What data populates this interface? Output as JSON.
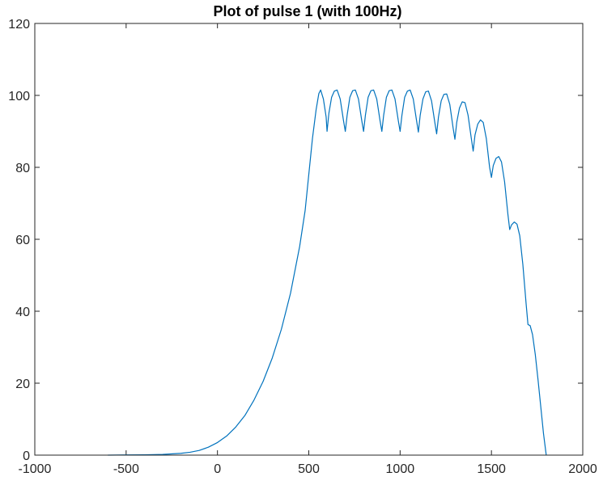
{
  "chart_data": {
    "type": "line",
    "title": "Plot of pulse 1 (with 100Hz)",
    "xlabel": "",
    "ylabel": "",
    "xlim": [
      -1000,
      2000
    ],
    "ylim": [
      0,
      120
    ],
    "xticks": [
      -1000,
      -500,
      0,
      500,
      1000,
      1500,
      2000
    ],
    "yticks": [
      0,
      20,
      40,
      60,
      80,
      100,
      120
    ],
    "xtick_labels": [
      "-1000",
      "-500",
      "0",
      "500",
      "1000",
      "1500",
      "2000"
    ],
    "ytick_labels": [
      "0",
      "20",
      "40",
      "60",
      "80",
      "100",
      "120"
    ],
    "grid": false,
    "series": [
      {
        "color": "#0072BD",
        "points": [
          [
            -600,
            0
          ],
          [
            -500,
            0.05
          ],
          [
            -400,
            0.1
          ],
          [
            -300,
            0.2
          ],
          [
            -200,
            0.5
          ],
          [
            -150,
            0.8
          ],
          [
            -100,
            1.3
          ],
          [
            -50,
            2.2
          ],
          [
            0,
            3.5
          ],
          [
            50,
            5.3
          ],
          [
            100,
            7.8
          ],
          [
            150,
            11.0
          ],
          [
            200,
            15.3
          ],
          [
            250,
            20.5
          ],
          [
            300,
            27.0
          ],
          [
            350,
            35.0
          ],
          [
            400,
            45.0
          ],
          [
            450,
            58.0
          ],
          [
            480,
            68.0
          ],
          [
            500,
            78.0
          ],
          [
            520,
            88.0
          ],
          [
            540,
            96.0
          ],
          [
            555,
            100.5
          ],
          [
            565,
            101.5
          ],
          [
            580,
            99.0
          ],
          [
            595,
            94.0
          ],
          [
            600,
            90.0
          ],
          [
            610,
            95.0
          ],
          [
            625,
            99.5
          ],
          [
            640,
            101.2
          ],
          [
            655,
            101.5
          ],
          [
            672,
            99.0
          ],
          [
            690,
            93.0
          ],
          [
            700,
            90.0
          ],
          [
            710,
            94.5
          ],
          [
            725,
            99.5
          ],
          [
            740,
            101.3
          ],
          [
            755,
            101.5
          ],
          [
            772,
            99.0
          ],
          [
            790,
            93.0
          ],
          [
            800,
            90.0
          ],
          [
            810,
            94.5
          ],
          [
            825,
            99.5
          ],
          [
            840,
            101.3
          ],
          [
            855,
            101.5
          ],
          [
            872,
            99.0
          ],
          [
            890,
            93.0
          ],
          [
            900,
            90.0
          ],
          [
            910,
            94.5
          ],
          [
            925,
            99.5
          ],
          [
            940,
            101.3
          ],
          [
            955,
            101.5
          ],
          [
            972,
            99.0
          ],
          [
            990,
            93.0
          ],
          [
            1000,
            90.0
          ],
          [
            1010,
            94.5
          ],
          [
            1025,
            99.5
          ],
          [
            1040,
            101.2
          ],
          [
            1055,
            101.5
          ],
          [
            1072,
            99.0
          ],
          [
            1090,
            93.0
          ],
          [
            1100,
            89.8
          ],
          [
            1110,
            94.5
          ],
          [
            1125,
            99.0
          ],
          [
            1140,
            101.0
          ],
          [
            1155,
            101.2
          ],
          [
            1172,
            98.5
          ],
          [
            1190,
            92.5
          ],
          [
            1200,
            89.3
          ],
          [
            1210,
            94.0
          ],
          [
            1225,
            98.5
          ],
          [
            1240,
            100.3
          ],
          [
            1255,
            100.4
          ],
          [
            1272,
            97.5
          ],
          [
            1290,
            91.0
          ],
          [
            1300,
            87.8
          ],
          [
            1310,
            92.5
          ],
          [
            1325,
            96.5
          ],
          [
            1340,
            98.2
          ],
          [
            1355,
            98.0
          ],
          [
            1372,
            94.5
          ],
          [
            1390,
            88.0
          ],
          [
            1400,
            84.5
          ],
          [
            1410,
            89.0
          ],
          [
            1425,
            92.0
          ],
          [
            1440,
            93.2
          ],
          [
            1455,
            92.5
          ],
          [
            1472,
            88.0
          ],
          [
            1490,
            80.0
          ],
          [
            1500,
            77.2
          ],
          [
            1510,
            80.5
          ],
          [
            1525,
            82.5
          ],
          [
            1540,
            83.0
          ],
          [
            1555,
            81.5
          ],
          [
            1572,
            76.0
          ],
          [
            1590,
            67.0
          ],
          [
            1600,
            62.7
          ],
          [
            1610,
            64.0
          ],
          [
            1625,
            64.8
          ],
          [
            1640,
            64.2
          ],
          [
            1655,
            61.0
          ],
          [
            1672,
            53.0
          ],
          [
            1690,
            42.0
          ],
          [
            1700,
            36.3
          ],
          [
            1712,
            36.0
          ],
          [
            1725,
            33.5
          ],
          [
            1740,
            28.0
          ],
          [
            1755,
            21.0
          ],
          [
            1770,
            13.5
          ],
          [
            1785,
            6.0
          ],
          [
            1800,
            0
          ]
        ]
      }
    ]
  }
}
